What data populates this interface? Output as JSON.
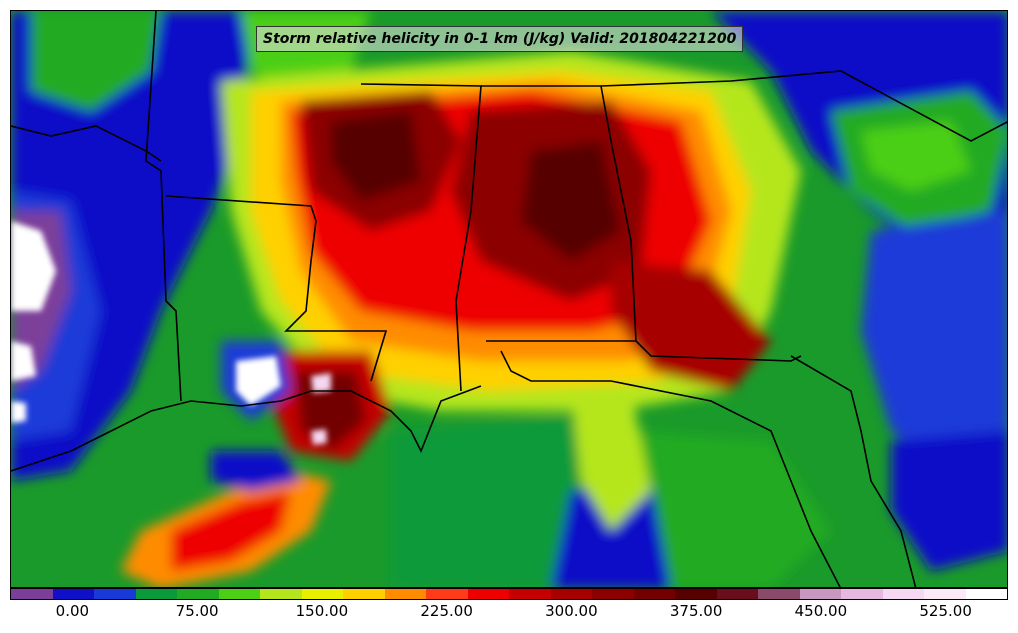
{
  "title": "Storm relative helicity in 0-1 km (J/kg) Valid: 201804221200",
  "colorbar": {
    "colors": [
      "#7b3f9a",
      "#1010c8",
      "#1a3ad8",
      "#0a9a3a",
      "#22aa22",
      "#4ccf14",
      "#b5e61d",
      "#e8f000",
      "#ffd000",
      "#ff8c00",
      "#ff3b1a",
      "#ee0000",
      "#c40000",
      "#a60000",
      "#8c0000",
      "#720000",
      "#560000",
      "#6a0e1e",
      "#8a4a6a",
      "#c898c0",
      "#e6b8e0",
      "#f6d8f2",
      "#fbe9f8",
      "#ffffff"
    ],
    "tick_labels": [
      "0.00",
      "75.00",
      "150.00",
      "225.00",
      "300.00",
      "375.00",
      "450.00",
      "525.00"
    ],
    "tick_values": [
      0,
      75,
      150,
      225,
      300,
      375,
      450,
      525
    ],
    "vmin": -37.5,
    "vmax": 562.5
  }
}
